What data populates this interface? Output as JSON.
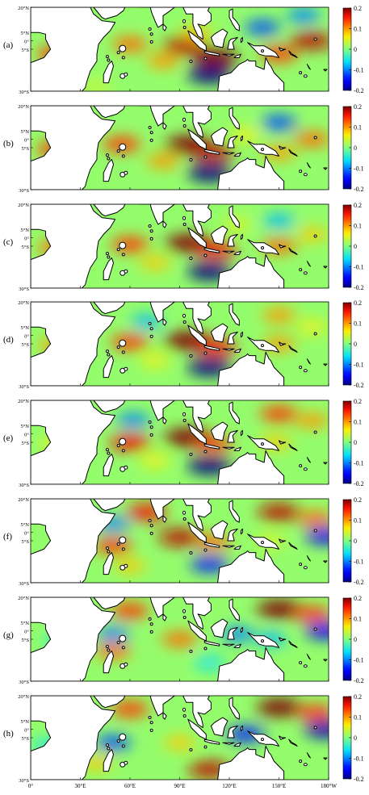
{
  "chart_data": {
    "type": "heatmap",
    "panel_labels": [
      "(a)",
      "(b)",
      "(c)",
      "(d)",
      "(e)",
      "(f)",
      "(g)",
      "(h)"
    ],
    "latitude_ticks": [
      "20°N",
      "5°N",
      "0°",
      "5°S",
      "30°S"
    ],
    "latitude_values": [
      20,
      5,
      0,
      -5,
      -30
    ],
    "longitude_ticks": [
      "0°",
      "30°E",
      "60°E",
      "90°E",
      "120°E",
      "150°E",
      "180°W"
    ],
    "longitude_values": [
      0,
      30,
      60,
      90,
      120,
      150,
      180
    ],
    "xlim": [
      0,
      180
    ],
    "ylim": [
      -30,
      20
    ],
    "colorbar": {
      "ticks": [
        "0.2",
        "0.1",
        "0",
        "-0.1",
        "-0.2"
      ],
      "values": [
        0.2,
        0.1,
        0,
        -0.1,
        -0.2
      ],
      "range": [
        -0.2,
        0.2
      ],
      "colormap": "jet"
    },
    "colors": {
      "land": "#ffffff",
      "coast": "#000000"
    },
    "panels": [
      {
        "label": "(a)",
        "features": [
          {
            "lon": 60,
            "lat": -2,
            "v": 0.12
          },
          {
            "lon": 93,
            "lat": -3,
            "v": 0.18
          },
          {
            "lon": 112,
            "lat": -10,
            "v": 0.2
          },
          {
            "lon": 80,
            "lat": -12,
            "v": 0.1
          },
          {
            "lon": 108,
            "lat": -20,
            "v": -0.2
          },
          {
            "lon": 150,
            "lat": -8,
            "v": 0.14
          },
          {
            "lon": 140,
            "lat": 8,
            "v": -0.12
          },
          {
            "lon": 165,
            "lat": 15,
            "v": -0.1
          },
          {
            "lon": 170,
            "lat": 0,
            "v": 0.18
          },
          {
            "lon": 15,
            "lat": -8,
            "v": 0.14
          },
          {
            "lon": 40,
            "lat": -27,
            "v": 0.04
          },
          {
            "lon": 100,
            "lat": 5,
            "v": 0.08
          }
        ]
      },
      {
        "label": "(b)",
        "features": [
          {
            "lon": 55,
            "lat": -3,
            "v": 0.14
          },
          {
            "lon": 95,
            "lat": -3,
            "v": 0.2
          },
          {
            "lon": 110,
            "lat": -8,
            "v": 0.18
          },
          {
            "lon": 80,
            "lat": -13,
            "v": 0.1
          },
          {
            "lon": 108,
            "lat": -20,
            "v": -0.2
          },
          {
            "lon": 150,
            "lat": -8,
            "v": 0.1
          },
          {
            "lon": 150,
            "lat": 10,
            "v": -0.12
          },
          {
            "lon": 170,
            "lat": 0,
            "v": 0.12
          },
          {
            "lon": 15,
            "lat": -6,
            "v": 0.14
          },
          {
            "lon": 130,
            "lat": 3,
            "v": 0.06
          }
        ]
      },
      {
        "label": "(c)",
        "features": [
          {
            "lon": 60,
            "lat": -4,
            "v": 0.14
          },
          {
            "lon": 95,
            "lat": -3,
            "v": 0.2
          },
          {
            "lon": 112,
            "lat": -7,
            "v": 0.16
          },
          {
            "lon": 75,
            "lat": -15,
            "v": 0.08
          },
          {
            "lon": 108,
            "lat": -20,
            "v": -0.2
          },
          {
            "lon": 150,
            "lat": -5,
            "v": 0.12
          },
          {
            "lon": 150,
            "lat": 10,
            "v": -0.08
          },
          {
            "lon": 170,
            "lat": 2,
            "v": 0.08
          },
          {
            "lon": 15,
            "lat": -6,
            "v": 0.12
          },
          {
            "lon": 125,
            "lat": 8,
            "v": 0.05
          }
        ]
      },
      {
        "label": "(d)",
        "features": [
          {
            "lon": 60,
            "lat": -4,
            "v": 0.14
          },
          {
            "lon": 95,
            "lat": -3,
            "v": 0.22
          },
          {
            "lon": 112,
            "lat": -7,
            "v": 0.16
          },
          {
            "lon": 75,
            "lat": -15,
            "v": 0.06
          },
          {
            "lon": 108,
            "lat": -19,
            "v": -0.2
          },
          {
            "lon": 150,
            "lat": -5,
            "v": 0.1
          },
          {
            "lon": 150,
            "lat": 12,
            "v": 0.1
          },
          {
            "lon": 170,
            "lat": 5,
            "v": 0.06
          },
          {
            "lon": 15,
            "lat": -6,
            "v": 0.1
          },
          {
            "lon": 70,
            "lat": 8,
            "v": -0.08
          }
        ]
      },
      {
        "label": "(e)",
        "features": [
          {
            "lon": 60,
            "lat": -5,
            "v": 0.16
          },
          {
            "lon": 95,
            "lat": -2,
            "v": 0.22
          },
          {
            "lon": 110,
            "lat": -6,
            "v": 0.14
          },
          {
            "lon": 75,
            "lat": -16,
            "v": 0.06
          },
          {
            "lon": 108,
            "lat": -19,
            "v": -0.2
          },
          {
            "lon": 148,
            "lat": -5,
            "v": 0.08
          },
          {
            "lon": 150,
            "lat": 12,
            "v": 0.14
          },
          {
            "lon": 170,
            "lat": 8,
            "v": 0.1
          },
          {
            "lon": 15,
            "lat": -6,
            "v": 0.06
          },
          {
            "lon": 62,
            "lat": 8,
            "v": -0.1
          }
        ]
      },
      {
        "label": "(f)",
        "features": [
          {
            "lon": 50,
            "lat": -8,
            "v": 0.14
          },
          {
            "lon": 90,
            "lat": -3,
            "v": 0.18
          },
          {
            "lon": 110,
            "lat": -6,
            "v": 0.12
          },
          {
            "lon": 60,
            "lat": -20,
            "v": 0.08
          },
          {
            "lon": 108,
            "lat": -19,
            "v": -0.14
          },
          {
            "lon": 145,
            "lat": -5,
            "v": 0.05
          },
          {
            "lon": 150,
            "lat": 12,
            "v": 0.18
          },
          {
            "lon": 172,
            "lat": 8,
            "v": 0.12
          },
          {
            "lon": 178,
            "lat": -2,
            "v": -0.16
          },
          {
            "lon": 70,
            "lat": 12,
            "v": 0.16
          },
          {
            "lon": 50,
            "lat": 5,
            "v": -0.1
          }
        ]
      },
      {
        "label": "(g)",
        "features": [
          {
            "lon": 50,
            "lat": -12,
            "v": 0.12
          },
          {
            "lon": 90,
            "lat": -5,
            "v": 0.12
          },
          {
            "lon": 60,
            "lat": 12,
            "v": 0.14
          },
          {
            "lon": 108,
            "lat": -19,
            "v": -0.06
          },
          {
            "lon": 145,
            "lat": -5,
            "v": -0.08
          },
          {
            "lon": 150,
            "lat": 13,
            "v": 0.2
          },
          {
            "lon": 170,
            "lat": 10,
            "v": 0.14
          },
          {
            "lon": 178,
            "lat": 0,
            "v": -0.16
          },
          {
            "lon": 50,
            "lat": -2,
            "v": -0.1
          },
          {
            "lon": 125,
            "lat": -2,
            "v": -0.1
          },
          {
            "lon": 15,
            "lat": -6,
            "v": -0.04
          }
        ]
      },
      {
        "label": "(h)",
        "features": [
          {
            "lon": 50,
            "lat": -8,
            "v": -0.12
          },
          {
            "lon": 40,
            "lat": -20,
            "v": 0.08
          },
          {
            "lon": 90,
            "lat": -8,
            "v": 0.08
          },
          {
            "lon": 60,
            "lat": 12,
            "v": 0.14
          },
          {
            "lon": 108,
            "lat": -24,
            "v": 0.18
          },
          {
            "lon": 130,
            "lat": -3,
            "v": -0.14
          },
          {
            "lon": 150,
            "lat": 13,
            "v": 0.2
          },
          {
            "lon": 172,
            "lat": 10,
            "v": 0.14
          },
          {
            "lon": 178,
            "lat": 0,
            "v": -0.18
          },
          {
            "lon": 10,
            "lat": -10,
            "v": -0.06
          }
        ]
      }
    ]
  }
}
